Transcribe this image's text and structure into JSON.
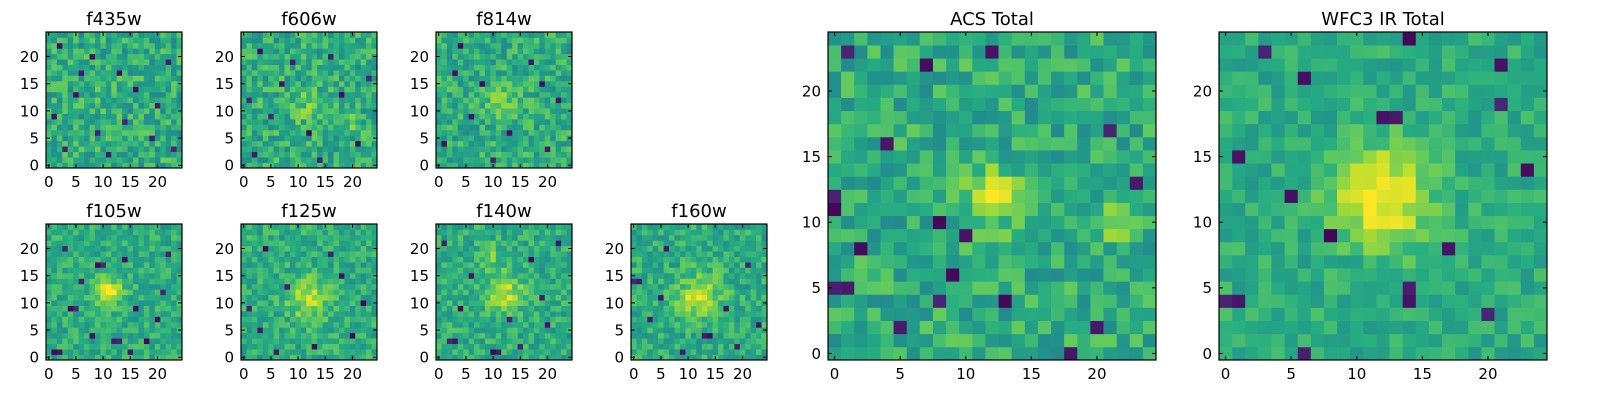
{
  "figure": {
    "background": "#ffffff",
    "colormap": "viridis"
  },
  "chart_data": [
    {
      "type": "heatmap",
      "title": "f435w",
      "grid_size": 25,
      "xlim": [
        -0.5,
        24.5
      ],
      "ylim": [
        -0.5,
        24.5
      ],
      "xticks": [
        0,
        5,
        10,
        15,
        20
      ],
      "yticks": [
        0,
        5,
        10,
        15,
        20
      ],
      "noise": 0.16,
      "blobs": [
        {
          "x": 12,
          "y": 12,
          "sigma": 2.5,
          "amp": 0.05
        }
      ],
      "dark_pixels": [
        [
          2,
          22
        ],
        [
          6,
          17
        ],
        [
          14,
          8
        ],
        [
          19,
          5
        ],
        [
          3,
          3
        ],
        [
          22,
          19
        ],
        [
          9,
          6
        ],
        [
          16,
          14
        ],
        [
          11,
          2
        ],
        [
          20,
          11
        ],
        [
          1,
          9
        ],
        [
          8,
          20
        ],
        [
          23,
          3
        ],
        [
          13,
          17
        ],
        [
          5,
          13
        ]
      ]
    },
    {
      "type": "heatmap",
      "title": "f606w",
      "grid_size": 25,
      "xlim": [
        -0.5,
        24.5
      ],
      "ylim": [
        -0.5,
        24.5
      ],
      "xticks": [
        0,
        5,
        10,
        15,
        20
      ],
      "yticks": [
        0,
        5,
        10,
        15,
        20
      ],
      "noise": 0.16,
      "blobs": [
        {
          "x": 11,
          "y": 11,
          "sigma": 2.2,
          "amp": 0.12
        },
        {
          "x": 20,
          "y": 8,
          "sigma": 1.2,
          "amp": 0.1
        }
      ],
      "dark_pixels": [
        [
          3,
          21
        ],
        [
          7,
          15
        ],
        [
          16,
          20
        ],
        [
          21,
          4
        ],
        [
          2,
          2
        ],
        [
          12,
          6
        ],
        [
          18,
          13
        ],
        [
          5,
          9
        ],
        [
          9,
          19
        ],
        [
          23,
          16
        ],
        [
          14,
          1
        ],
        [
          1,
          12
        ]
      ]
    },
    {
      "type": "heatmap",
      "title": "f814w",
      "grid_size": 25,
      "xlim": [
        -0.5,
        24.5
      ],
      "ylim": [
        -0.5,
        24.5
      ],
      "xticks": [
        0,
        5,
        10,
        15,
        20
      ],
      "yticks": [
        0,
        5,
        10,
        15,
        20
      ],
      "noise": 0.15,
      "blobs": [
        {
          "x": 12,
          "y": 11,
          "sigma": 2.0,
          "amp": 0.2
        }
      ],
      "dark_pixels": [
        [
          4,
          22
        ],
        [
          8,
          15
        ],
        [
          17,
          19
        ],
        [
          20,
          3
        ],
        [
          1,
          4
        ],
        [
          13,
          6
        ],
        [
          22,
          12
        ],
        [
          6,
          9
        ],
        [
          10,
          1
        ],
        [
          19,
          15
        ],
        [
          3,
          17
        ]
      ]
    },
    {
      "type": "heatmap",
      "title": "f105w",
      "grid_size": 25,
      "xlim": [
        -0.5,
        24.5
      ],
      "ylim": [
        -0.5,
        24.5
      ],
      "xticks": [
        0,
        5,
        10,
        15,
        20
      ],
      "yticks": [
        0,
        5,
        10,
        15,
        20
      ],
      "noise": 0.12,
      "blobs": [
        {
          "x": 11,
          "y": 12,
          "sigma": 1.8,
          "amp": 0.38
        }
      ],
      "dark_pixels": [
        [
          9,
          17
        ],
        [
          10,
          17
        ],
        [
          14,
          18
        ],
        [
          4,
          9
        ],
        [
          5,
          9
        ],
        [
          12,
          3
        ],
        [
          13,
          3
        ],
        [
          18,
          3
        ],
        [
          1,
          1
        ],
        [
          2,
          1
        ],
        [
          22,
          19
        ],
        [
          20,
          7
        ],
        [
          6,
          14
        ],
        [
          16,
          9
        ],
        [
          3,
          20
        ],
        [
          21,
          12
        ],
        [
          8,
          4
        ],
        [
          15,
          1
        ]
      ]
    },
    {
      "type": "heatmap",
      "title": "f125w",
      "grid_size": 25,
      "xlim": [
        -0.5,
        24.5
      ],
      "ylim": [
        -0.5,
        24.5
      ],
      "xticks": [
        0,
        5,
        10,
        15,
        20
      ],
      "yticks": [
        0,
        5,
        10,
        15,
        20
      ],
      "noise": 0.13,
      "blobs": [
        {
          "x": 12,
          "y": 11,
          "sigma": 2.6,
          "amp": 0.3
        }
      ],
      "dark_pixels": [
        [
          4,
          20
        ],
        [
          16,
          19
        ],
        [
          20,
          4
        ],
        [
          3,
          5
        ],
        [
          8,
          13
        ],
        [
          22,
          10
        ],
        [
          13,
          2
        ],
        [
          6,
          1
        ],
        [
          18,
          15
        ],
        [
          1,
          9
        ]
      ]
    },
    {
      "type": "heatmap",
      "title": "f140w",
      "grid_size": 25,
      "xlim": [
        -0.5,
        24.5
      ],
      "ylim": [
        -0.5,
        24.5
      ],
      "xticks": [
        0,
        5,
        10,
        15,
        20
      ],
      "yticks": [
        0,
        5,
        10,
        15,
        20
      ],
      "noise": 0.13,
      "blobs": [
        {
          "x": 12,
          "y": 12,
          "sigma": 2.4,
          "amp": 0.28
        },
        {
          "x": 10,
          "y": 19,
          "sigma": 1.5,
          "amp": 0.12
        }
      ],
      "dark_pixels": [
        [
          10,
          1
        ],
        [
          11,
          1
        ],
        [
          15,
          2
        ],
        [
          2,
          3
        ],
        [
          3,
          3
        ],
        [
          20,
          6
        ],
        [
          6,
          15
        ],
        [
          17,
          18
        ],
        [
          22,
          21
        ],
        [
          4,
          9
        ],
        [
          13,
          7
        ],
        [
          1,
          21
        ],
        [
          19,
          11
        ]
      ]
    },
    {
      "type": "heatmap",
      "title": "f160w",
      "grid_size": 25,
      "xlim": [
        -0.5,
        24.5
      ],
      "ylim": [
        -0.5,
        24.5
      ],
      "xticks": [
        0,
        5,
        10,
        15,
        20
      ],
      "yticks": [
        0,
        5,
        10,
        15,
        20
      ],
      "noise": 0.13,
      "blobs": [
        {
          "x": 12,
          "y": 11,
          "sigma": 2.8,
          "amp": 0.3
        }
      ],
      "dark_pixels": [
        [
          0,
          14
        ],
        [
          1,
          14
        ],
        [
          6,
          20
        ],
        [
          13,
          4
        ],
        [
          14,
          4
        ],
        [
          19,
          2
        ],
        [
          3,
          7
        ],
        [
          21,
          17
        ],
        [
          9,
          1
        ],
        [
          17,
          9
        ],
        [
          23,
          6
        ],
        [
          5,
          11
        ]
      ]
    },
    {
      "type": "heatmap",
      "title": "ACS Total",
      "grid_size": 25,
      "xlim": [
        -0.5,
        24.5
      ],
      "ylim": [
        -0.5,
        24.5
      ],
      "xticks": [
        0,
        5,
        10,
        15,
        20
      ],
      "yticks": [
        0,
        5,
        10,
        15,
        20
      ],
      "noise": 0.15,
      "blobs": [
        {
          "x": 12,
          "y": 12,
          "sigma": 1.6,
          "amp": 0.3
        },
        {
          "x": 21,
          "y": 10,
          "sigma": 1.2,
          "amp": 0.18
        }
      ],
      "dark_pixels": [
        [
          1,
          23
        ],
        [
          7,
          22
        ],
        [
          12,
          23
        ],
        [
          21,
          17
        ],
        [
          0,
          12
        ],
        [
          0,
          11
        ],
        [
          8,
          10
        ],
        [
          10,
          9
        ],
        [
          0,
          5
        ],
        [
          1,
          5
        ],
        [
          8,
          4
        ],
        [
          13,
          4
        ],
        [
          4,
          16
        ],
        [
          23,
          13
        ],
        [
          5,
          2
        ],
        [
          20,
          2
        ],
        [
          9,
          6
        ],
        [
          18,
          0
        ],
        [
          2,
          8
        ]
      ]
    },
    {
      "type": "heatmap",
      "title": "WFC3 IR Total",
      "grid_size": 25,
      "xlim": [
        -0.5,
        24.5
      ],
      "ylim": [
        -0.5,
        24.5
      ],
      "xticks": [
        0,
        5,
        10,
        15,
        20
      ],
      "yticks": [
        0,
        5,
        10,
        15,
        20
      ],
      "noise": 0.1,
      "blobs": [
        {
          "x": 12,
          "y": 12,
          "sigma": 2.6,
          "amp": 0.42
        }
      ],
      "dark_pixels": [
        [
          3,
          23
        ],
        [
          14,
          24
        ],
        [
          6,
          21
        ],
        [
          12,
          18
        ],
        [
          13,
          18
        ],
        [
          21,
          22
        ],
        [
          1,
          15
        ],
        [
          8,
          9
        ],
        [
          21,
          19
        ],
        [
          0,
          4
        ],
        [
          1,
          4
        ],
        [
          14,
          5
        ],
        [
          14,
          4
        ],
        [
          20,
          3
        ],
        [
          6,
          0
        ],
        [
          17,
          8
        ],
        [
          5,
          12
        ],
        [
          23,
          14
        ]
      ]
    }
  ]
}
